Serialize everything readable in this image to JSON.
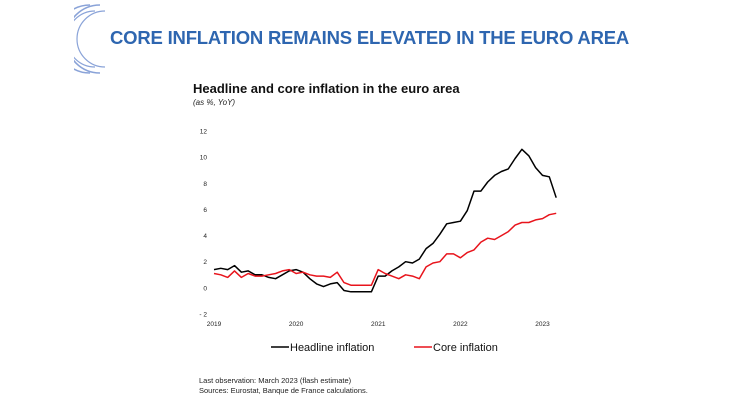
{
  "slide": {
    "title": "CORE INFLATION REMAINS ELEVATED IN THE EURO AREA",
    "logo_icon": "bracket-arcs-logo-icon"
  },
  "chart_data": {
    "type": "line",
    "title": "Headline and core inflation in the euro area",
    "subtitle": "(as %, YoY)",
    "ylim": [
      -2,
      12
    ],
    "y_ticks": [
      12,
      10,
      8,
      6,
      4,
      2,
      0,
      -2
    ],
    "y_tick_labels": [
      "12",
      "10",
      "8",
      "6",
      "4",
      "2",
      "0",
      "- 2"
    ],
    "x_start": 2019.0,
    "x_end": 2023.25,
    "x_ticks": [
      2019,
      2020,
      2021,
      2022,
      2023
    ],
    "x_tick_labels": [
      "2019",
      "2020",
      "2021",
      "2022",
      "2023"
    ],
    "series": [
      {
        "name": "Headline inflation",
        "color": "#000000",
        "values": [
          1.4,
          1.5,
          1.4,
          1.7,
          1.2,
          1.3,
          1.0,
          1.0,
          0.8,
          0.7,
          1.0,
          1.3,
          1.4,
          1.2,
          0.7,
          0.3,
          0.1,
          0.3,
          0.4,
          -0.2,
          -0.3,
          -0.3,
          -0.3,
          -0.3,
          0.9,
          0.9,
          1.3,
          1.6,
          2.0,
          1.9,
          2.2,
          3.0,
          3.4,
          4.1,
          4.9,
          5.0,
          5.1,
          5.9,
          7.4,
          7.4,
          8.1,
          8.6,
          8.9,
          9.1,
          9.9,
          10.6,
          10.1,
          9.2,
          8.6,
          8.5,
          6.9
        ]
      },
      {
        "name": "Core inflation",
        "color": "#e8141c",
        "values": [
          1.1,
          1.0,
          0.8,
          1.3,
          0.8,
          1.1,
          0.9,
          0.9,
          1.0,
          1.1,
          1.3,
          1.4,
          1.1,
          1.2,
          1.0,
          0.9,
          0.9,
          0.8,
          1.2,
          0.4,
          0.2,
          0.2,
          0.2,
          0.2,
          1.4,
          1.1,
          0.9,
          0.7,
          1.0,
          0.9,
          0.7,
          1.6,
          1.9,
          2.0,
          2.6,
          2.6,
          2.3,
          2.7,
          2.9,
          3.5,
          3.8,
          3.7,
          4.0,
          4.3,
          4.8,
          5.0,
          5.0,
          5.2,
          5.3,
          5.6,
          5.7
        ]
      }
    ],
    "legend_position": "bottom"
  },
  "footer": {
    "line1": "Last observation: March 2023 (flash estimate)",
    "line2": "Sources: Eurostat, Banque de France calculations."
  }
}
